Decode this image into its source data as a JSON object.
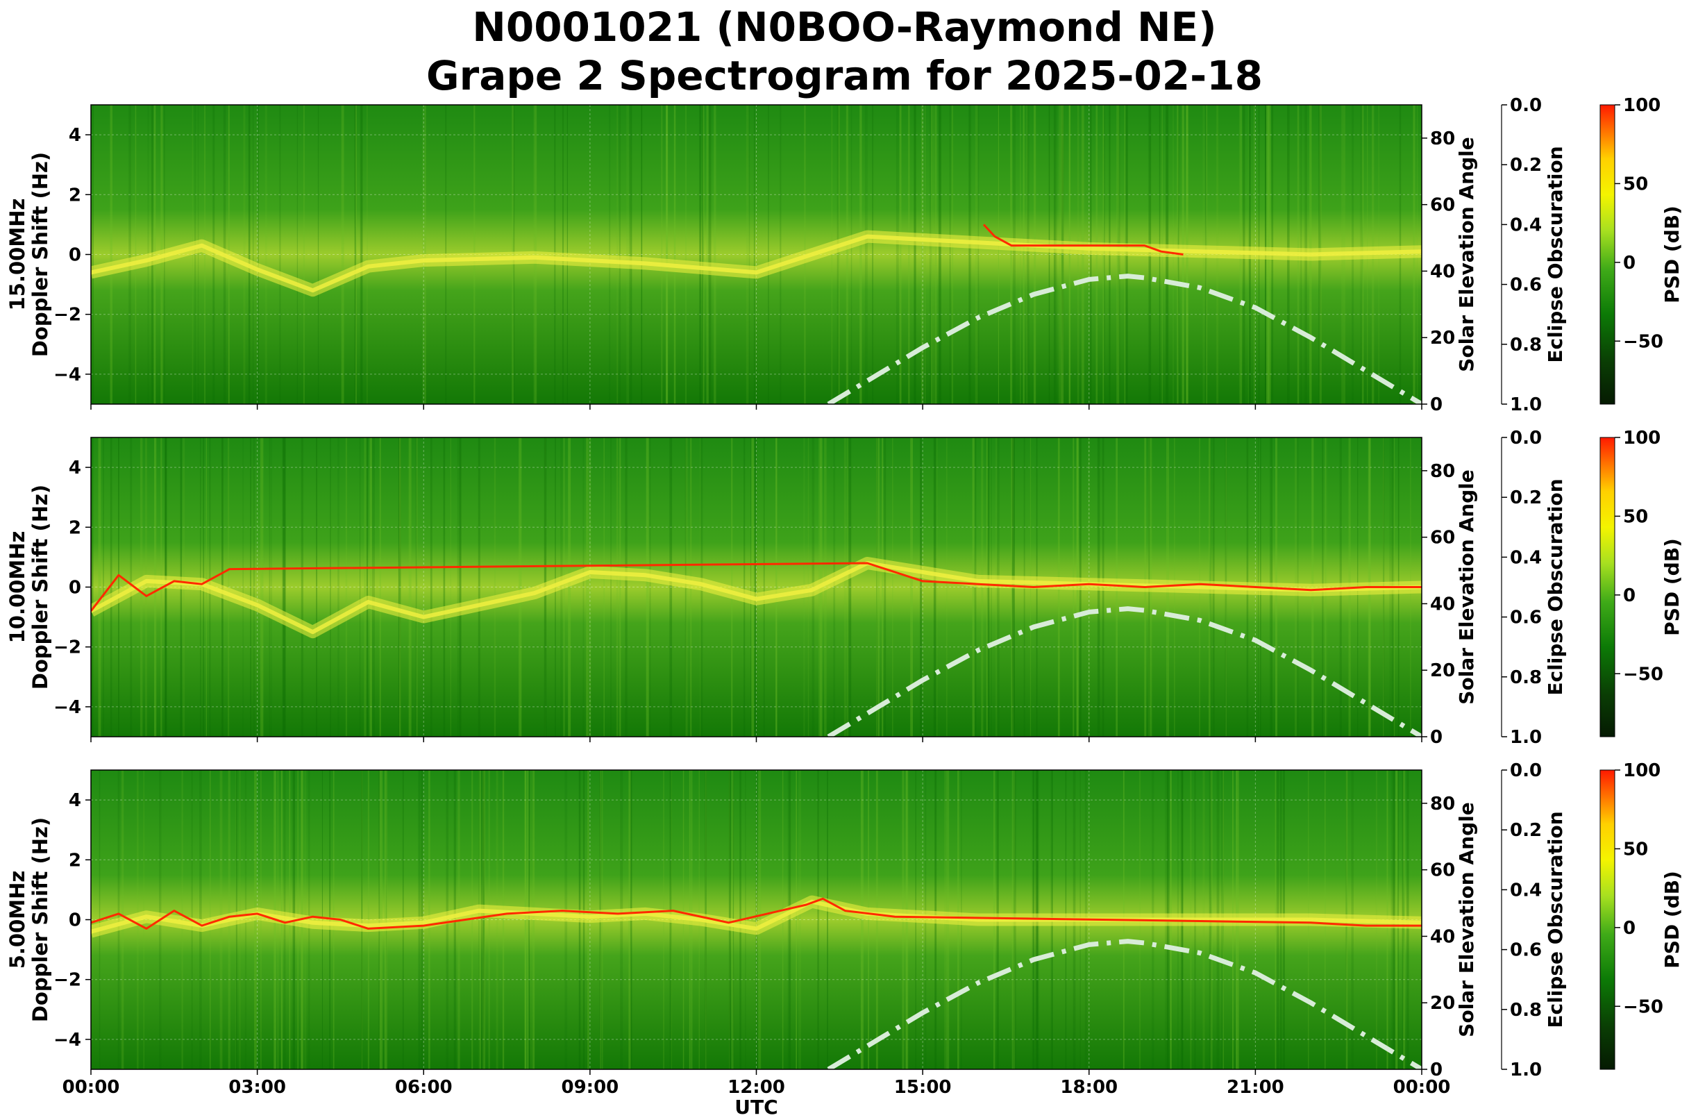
{
  "figure": {
    "title_line1": "N0001021 (N0BOO-Raymond NE)",
    "title_line2": "Grape 2 Spectrogram for 2025-02-18",
    "xlabel": "UTC"
  },
  "chart_data": [
    {
      "type": "heatmap",
      "frequency_label": "15.00MHz",
      "ylabel": "Doppler Shift (Hz)",
      "ylim": [
        -5,
        5
      ],
      "yticks": [
        "4",
        "2",
        "0",
        "−2",
        "−4"
      ],
      "x_ticks": [
        "00:00",
        "03:00",
        "06:00",
        "09:00",
        "12:00",
        "15:00",
        "18:00",
        "21:00",
        "00:00"
      ],
      "x_range_hours": [
        0,
        24
      ],
      "right_axis": {
        "label": "Solar Elevation Angle",
        "ylim": [
          0,
          90
        ],
        "ticks": [
          "0",
          "20",
          "40",
          "60",
          "80"
        ]
      },
      "obscuration_axis": {
        "label": "Eclipse Obscuration",
        "ylim": [
          1.0,
          0.0
        ],
        "ticks": [
          "0.0",
          "0.2",
          "0.4",
          "0.6",
          "0.8",
          "1.0"
        ]
      },
      "colorbar": {
        "label": "PSD (dB)",
        "range": [
          -90,
          100
        ],
        "ticks": [
          "100",
          "50",
          "0",
          "−50"
        ]
      },
      "grid": true,
      "solar_elevation": {
        "x_hours": [
          13.3,
          14,
          15,
          16,
          17,
          18,
          18.7,
          19,
          20,
          21,
          22,
          23,
          24
        ],
        "elevation_deg": [
          0,
          7,
          17,
          26,
          33,
          37.5,
          38.5,
          38,
          35,
          29,
          20,
          10,
          0
        ],
        "style": "dash-dot",
        "color": "#d8ecd8"
      },
      "signal_trace": {
        "color": "#f0f040",
        "x_hours": [
          0,
          1,
          2,
          3,
          4,
          5,
          6,
          8,
          10,
          12,
          14,
          16,
          18,
          20,
          22,
          24
        ],
        "doppler_hz": [
          -0.6,
          -0.2,
          0.3,
          -0.5,
          -1.2,
          -0.4,
          -0.2,
          -0.1,
          -0.3,
          -0.6,
          0.6,
          0.4,
          0.2,
          0.1,
          0.0,
          0.1
        ]
      },
      "strong_signal": {
        "color": "#ff2a00",
        "x_hours": [
          16.1,
          16.3,
          16.6,
          18.6,
          19.0,
          19.3,
          19.7
        ],
        "doppler_hz": [
          1.0,
          0.6,
          0.3,
          0.3,
          0.3,
          0.1,
          0.0
        ]
      }
    },
    {
      "type": "heatmap",
      "frequency_label": "10.00MHz",
      "ylabel": "Doppler Shift (Hz)",
      "ylim": [
        -5,
        5
      ],
      "yticks": [
        "4",
        "2",
        "0",
        "−2",
        "−4"
      ],
      "x_ticks": [
        "00:00",
        "03:00",
        "06:00",
        "09:00",
        "12:00",
        "15:00",
        "18:00",
        "21:00",
        "00:00"
      ],
      "x_range_hours": [
        0,
        24
      ],
      "right_axis": {
        "label": "Solar Elevation Angle",
        "ylim": [
          0,
          90
        ],
        "ticks": [
          "0",
          "20",
          "40",
          "60",
          "80"
        ]
      },
      "obscuration_axis": {
        "label": "Eclipse Obscuration",
        "ylim": [
          1.0,
          0.0
        ],
        "ticks": [
          "0.0",
          "0.2",
          "0.4",
          "0.6",
          "0.8",
          "1.0"
        ]
      },
      "colorbar": {
        "label": "PSD (dB)",
        "range": [
          -90,
          100
        ],
        "ticks": [
          "100",
          "50",
          "0",
          "−50"
        ]
      },
      "grid": true,
      "solar_elevation": {
        "x_hours": [
          13.3,
          14,
          15,
          16,
          17,
          18,
          18.7,
          19,
          20,
          21,
          22,
          23,
          24
        ],
        "elevation_deg": [
          0,
          7,
          17,
          26,
          33,
          37.5,
          38.5,
          38,
          35,
          29,
          20,
          10,
          0
        ],
        "style": "dash-dot",
        "color": "#d8ecd8"
      },
      "signal_trace": {
        "color": "#f0f040",
        "x_hours": [
          0,
          1,
          2,
          3,
          4,
          5,
          6,
          7,
          8,
          9,
          10,
          11,
          12,
          13,
          14,
          16,
          18,
          20,
          22,
          24
        ],
        "doppler_hz": [
          -0.8,
          0.2,
          0.1,
          -0.6,
          -1.5,
          -0.5,
          -1.0,
          -0.6,
          -0.2,
          0.5,
          0.4,
          0.1,
          -0.4,
          -0.1,
          0.8,
          0.2,
          0.1,
          0.0,
          -0.1,
          0.0
        ]
      },
      "strong_signal": {
        "color": "#ff2a00",
        "x_hours": [
          0,
          0.5,
          1,
          1.5,
          2,
          2.5,
          14,
          15,
          16,
          17,
          18,
          19,
          20,
          21,
          22,
          23,
          24
        ],
        "doppler_hz": [
          -0.8,
          0.4,
          -0.3,
          0.2,
          0.1,
          0.6,
          0.8,
          0.2,
          0.1,
          0.0,
          0.1,
          0.0,
          0.1,
          0.0,
          -0.1,
          0.0,
          0.0
        ]
      }
    },
    {
      "type": "heatmap",
      "frequency_label": "5.00MHz",
      "ylabel": "Doppler Shift (Hz)",
      "ylim": [
        -5,
        5
      ],
      "yticks": [
        "4",
        "2",
        "0",
        "−2",
        "−4"
      ],
      "x_ticks": [
        "00:00",
        "03:00",
        "06:00",
        "09:00",
        "12:00",
        "15:00",
        "18:00",
        "21:00",
        "00:00"
      ],
      "x_range_hours": [
        0,
        24
      ],
      "right_axis": {
        "label": "Solar Elevation Angle",
        "ylim": [
          0,
          90
        ],
        "ticks": [
          "0",
          "20",
          "40",
          "60",
          "80"
        ]
      },
      "obscuration_axis": {
        "label": "Eclipse Obscuration",
        "ylim": [
          1.0,
          0.0
        ],
        "ticks": [
          "0.0",
          "0.2",
          "0.4",
          "0.6",
          "0.8",
          "1.0"
        ]
      },
      "colorbar": {
        "label": "PSD (dB)",
        "range": [
          -90,
          100
        ],
        "ticks": [
          "100",
          "50",
          "0",
          "−50"
        ]
      },
      "grid": true,
      "solar_elevation": {
        "x_hours": [
          13.3,
          14,
          15,
          16,
          17,
          18,
          18.7,
          19,
          20,
          21,
          22,
          23,
          24
        ],
        "elevation_deg": [
          0,
          7,
          17,
          26,
          33,
          37.5,
          38.5,
          38,
          35,
          29,
          20,
          10,
          0
        ],
        "style": "dash-dot",
        "color": "#d8ecd8"
      },
      "signal_trace": {
        "color": "#f0f040",
        "x_hours": [
          0,
          1,
          2,
          3,
          4,
          5,
          6,
          7,
          8,
          9,
          10,
          11,
          12,
          13,
          14,
          16,
          18,
          20,
          22,
          24
        ],
        "doppler_hz": [
          -0.4,
          0.1,
          -0.2,
          0.2,
          -0.1,
          -0.2,
          -0.1,
          0.3,
          0.2,
          0.1,
          0.2,
          0.0,
          -0.3,
          0.6,
          0.2,
          0.0,
          0.0,
          0.0,
          0.0,
          -0.1
        ]
      },
      "strong_signal": {
        "color": "#ff2a00",
        "x_hours": [
          0,
          0.5,
          1,
          1.5,
          2,
          2.5,
          3,
          3.5,
          4,
          4.5,
          5,
          6,
          7.5,
          8.5,
          9.5,
          10.5,
          11.5,
          12.9,
          13.2,
          13.6,
          14.5,
          22,
          23,
          24
        ],
        "doppler_hz": [
          -0.1,
          0.2,
          -0.3,
          0.3,
          -0.2,
          0.1,
          0.2,
          -0.1,
          0.1,
          0.0,
          -0.3,
          -0.2,
          0.2,
          0.3,
          0.2,
          0.3,
          -0.1,
          0.5,
          0.7,
          0.3,
          0.1,
          -0.1,
          -0.2,
          -0.2
        ]
      }
    }
  ]
}
